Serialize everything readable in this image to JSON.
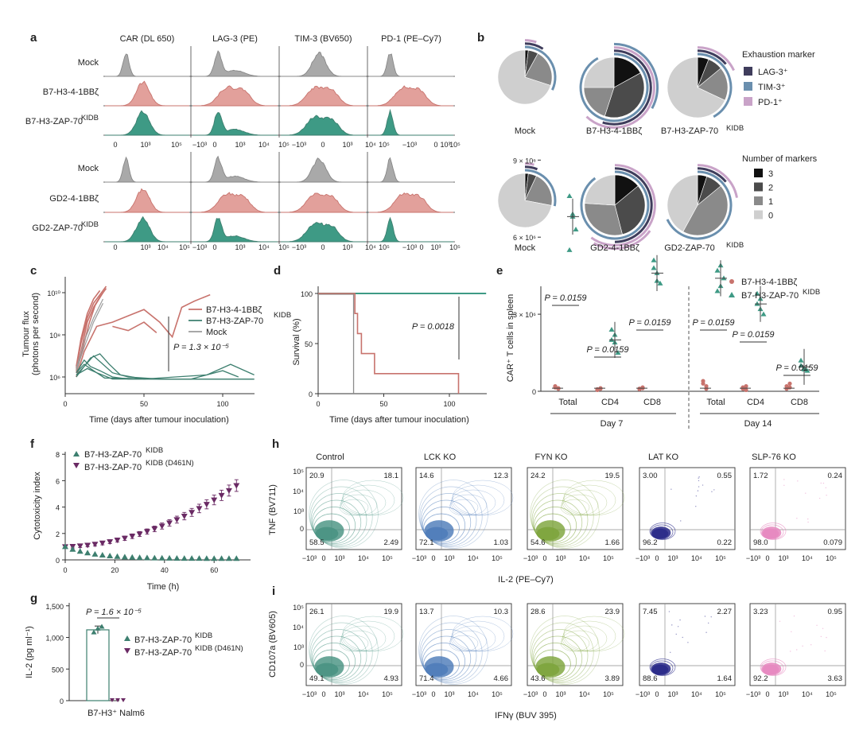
{
  "colors": {
    "mock": "#a9a9a9",
    "b7_41bb": "#e2a09b",
    "b7_41bb_line": "#c8736d",
    "zap70": "#3e9a85",
    "zap70_dark": "#3d7f6f",
    "d461n": "#6a2a64",
    "lag3": "#3f3d5c",
    "tim3": "#6a8fae",
    "pd1": "#c9a3c8",
    "m3": "#111111",
    "m2": "#4b4b4b",
    "m1": "#8a8a8a",
    "m0": "#cfcfcf",
    "control": "#4a9483",
    "lckko": "#4f7dba",
    "fynko": "#7ea53d",
    "latko": "#2c2c8a",
    "slp76ko": "#e78ac1"
  },
  "panel_a": {
    "letter": "a",
    "columns": [
      "CAR (DL 650)",
      "LAG-3 (PE)",
      "TIM-3 (BV650)",
      "PD-1 (PE–Cy7)"
    ],
    "rows_top": [
      "Mock",
      "B7-H3-4-1BBζ",
      "B7-H3-ZAP-70"
    ],
    "rows_bottom": [
      "Mock",
      "GD2-4-1BBζ",
      "GD2-ZAP-70"
    ],
    "kidb": "KIDB",
    "ticks_top": [
      "0",
      "10³",
      "10⁵",
      "−10³",
      "0",
      "10³",
      "10⁴",
      "10⁵",
      "−10³",
      "0",
      "10³",
      "10⁴",
      "10⁵",
      "−10³",
      "0",
      "10³",
      "10⁵"
    ],
    "ticks_bottom": [
      "0",
      "10³",
      "10⁴",
      "10⁵",
      "−10³",
      "0",
      "10³",
      "10⁴",
      "10⁵",
      "−10³",
      "0",
      "10³",
      "10⁴",
      "10⁵",
      "−10³",
      "0",
      "10³",
      "10⁵"
    ]
  },
  "panel_b": {
    "letter": "b",
    "labels": [
      "Mock",
      "B7-H3-4-1BBζ",
      "B7-H3-ZAP-70",
      "Mock",
      "GD2-4-1BBζ",
      "GD2-ZAP-70"
    ],
    "kidb": "KIDB",
    "legend1_title": "Exhaustion marker",
    "legend1": [
      "LAG-3⁺",
      "TIM-3⁺",
      "PD-1⁺"
    ],
    "legend2_title": "Number of markers",
    "legend2": [
      "3",
      "2",
      "1",
      "0"
    ]
  },
  "panel_c": {
    "letter": "c",
    "ylabel_1": "Tumour flux",
    "ylabel_2": "(photons per second)",
    "yticks": [
      "10¹⁰",
      "10⁸",
      "10⁶"
    ],
    "xticks": [
      "0",
      "50",
      "100"
    ],
    "xlabel": "Time (days after tumour inoculation)",
    "legend": [
      "B7-H3-4-1BBζ",
      "B7-H3-ZAP-70",
      "Mock"
    ],
    "kidb": "KIDB",
    "pvalue": "P = 1.3 × 10⁻⁵"
  },
  "panel_d": {
    "letter": "d",
    "ylabel": "Survival (%)",
    "yticks": [
      "100",
      "50",
      "0"
    ],
    "xticks": [
      "0",
      "50",
      "100"
    ],
    "xlabel": "Time (days after tumour inoculation)",
    "pvalue": "P = 0.0018"
  },
  "panel_e": {
    "letter": "e",
    "ylabel": "CAR⁺ T cells in spleen",
    "yticks": [
      "9 × 10⁶",
      "6 × 10⁶",
      "3 × 10⁶",
      "0"
    ],
    "legend": [
      "B7-H3-4-1BBζ",
      "B7-H3-ZAP-70"
    ],
    "kidb": "KIDB",
    "groups": [
      "Total",
      "CD4",
      "CD8",
      "Total",
      "CD4",
      "CD8"
    ],
    "days": [
      "Day 7",
      "Day 14"
    ],
    "pvalue": "P = 0.0159"
  },
  "panel_f": {
    "letter": "f",
    "ylabel": "Cytotoxicity index",
    "yticks": [
      "8",
      "6",
      "4",
      "2",
      "0"
    ],
    "xticks": [
      "0",
      "20",
      "40",
      "60"
    ],
    "xlabel": "Time (h)",
    "legend": [
      "B7-H3-ZAP-70",
      "B7-H3-ZAP-70"
    ],
    "kidb": "KIDB",
    "kidb_mut": "KIDB (D461N)"
  },
  "panel_g": {
    "letter": "g",
    "ylabel": "IL-2 (pg ml⁻¹)",
    "yticks": [
      "1,500",
      "1,000",
      "500",
      "0"
    ],
    "xlabel": "B7-H3⁺ Nalm6",
    "pvalue": "P = 1.6 × 10⁻⁵",
    "legend": [
      "B7-H3-ZAP-70",
      "B7-H3-ZAP-70"
    ],
    "kidb": "KIDB",
    "kidb_mut": "KIDB (D461N)"
  },
  "panel_h": {
    "letter": "h",
    "titles": [
      "Control",
      "LCK KO",
      "FYN KO",
      "LAT KO",
      "SLP-76 KO"
    ],
    "ylabel": "TNF (BV711)",
    "xlabel": "IL-2 (PE–Cy7)",
    "quads": [
      [
        "20.9",
        "18.1",
        "58.5",
        "2.49"
      ],
      [
        "14.6",
        "12.3",
        "72.1",
        "1.03"
      ],
      [
        "24.2",
        "19.5",
        "54.6",
        "1.66"
      ],
      [
        "3.00",
        "0.55",
        "96.2",
        "0.22"
      ],
      [
        "1.72",
        "0.24",
        "98.0",
        "0.079"
      ]
    ]
  },
  "panel_i": {
    "letter": "i",
    "ylabel": "CD107a (BV605)",
    "xlabel": "IFNγ (BUV 395)",
    "quads": [
      [
        "26.1",
        "19.9",
        "49.1",
        "4.93"
      ],
      [
        "13.7",
        "10.3",
        "71.4",
        "4.66"
      ],
      [
        "28.6",
        "23.9",
        "43.6",
        "3.89"
      ],
      [
        "7.45",
        "2.27",
        "88.6",
        "1.64"
      ],
      [
        "3.23",
        "0.95",
        "92.2",
        "3.63"
      ]
    ]
  },
  "flow_yticks": [
    "10⁵",
    "10⁴",
    "10³",
    "0"
  ],
  "flow_xticks": [
    "−10³",
    "0",
    "10³",
    "10⁴",
    "10⁵"
  ]
}
